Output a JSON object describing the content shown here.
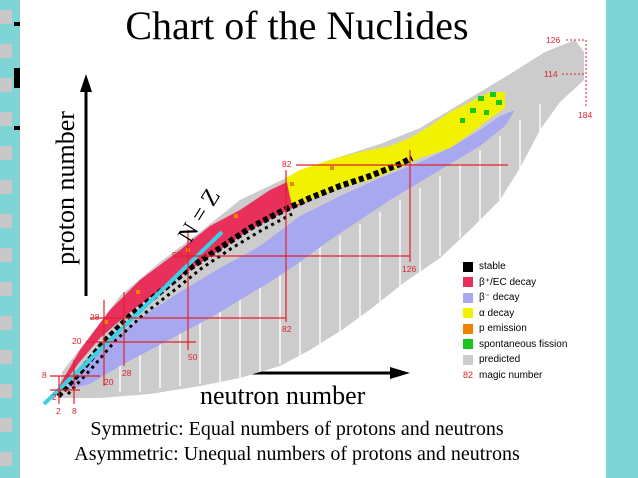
{
  "title": "Chart of the Nuclides",
  "axis": {
    "x_label": "neutron number",
    "y_label": "proton number"
  },
  "diagonal_label": "N = Z",
  "magic_numbers": {
    "proton_lines": [
      "2",
      "8",
      "20",
      "28",
      "50",
      "82"
    ],
    "neutron_lines": [
      "2",
      "8",
      "20",
      "28",
      "50",
      "82",
      "126"
    ],
    "predicted": [
      "126",
      "114",
      "184"
    ]
  },
  "legend": [
    {
      "label": "stable",
      "color": "#000000"
    },
    {
      "label": "β⁺/EC decay",
      "color": "#e8305a"
    },
    {
      "label": "β⁻ decay",
      "color": "#a8a8f0"
    },
    {
      "label": "α decay",
      "color": "#f2f200"
    },
    {
      "label": "p emission",
      "color": "#f28000"
    },
    {
      "label": "spontaneous fission",
      "color": "#18c818"
    },
    {
      "label": "predicted",
      "color": "#cccccc"
    },
    {
      "label": "magic number",
      "marker": "82",
      "color": "#e0202a"
    }
  ],
  "captions": [
    "Symmetric: Equal numbers of protons and neutrons",
    "Asymmetric:  Unequal numbers of protons and neutrons"
  ],
  "colors": {
    "frame_cyan": "#7fd5d5",
    "nz_line": "#3fd0e8",
    "magic_line": "#e0202a"
  }
}
